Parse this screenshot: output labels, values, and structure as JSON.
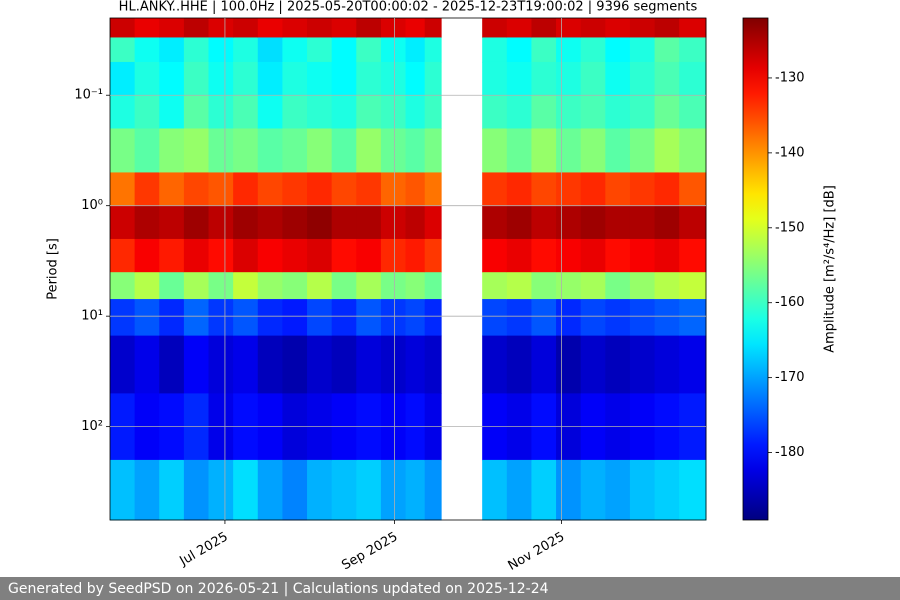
{
  "chart_data": {
    "type": "heatmap",
    "title": "HL.ANKY..HHE | 100.0Hz | 2025-05-20T00:00:02 - 2025-12-23T19:00:02 | 9396 segments",
    "ylabel": "Period [s]",
    "colorbar_label": "Amplitude [m²/s⁴/Hz] [dB]",
    "xlim": [
      "2025-05-20T00:00:02",
      "2025-12-23T19:00:02"
    ],
    "xticks": [
      {
        "value": "2025-07-01",
        "label": "Jul 2025"
      },
      {
        "value": "2025-09-01",
        "label": "Sep 2025"
      },
      {
        "value": "2025-11-01",
        "label": "Nov 2025"
      }
    ],
    "ylim": [
      0.02,
      700
    ],
    "yscale": "log",
    "y_reversed": true,
    "yticks": [
      {
        "value": 0.1,
        "label": "10⁻¹"
      },
      {
        "value": 1,
        "label": "10⁰"
      },
      {
        "value": 10,
        "label": "10¹"
      },
      {
        "value": 100,
        "label": "10²"
      }
    ],
    "grid": true,
    "colormap": "jet",
    "zlim": [
      -189,
      -122
    ],
    "zticks": [
      -130,
      -140,
      -150,
      -160,
      -170,
      -180
    ],
    "x": [
      "2025-05-20",
      "2025-05-29",
      "2025-06-07",
      "2025-06-16",
      "2025-06-25",
      "2025-07-04",
      "2025-07-13",
      "2025-07-22",
      "2025-07-31",
      "2025-08-09",
      "2025-08-18",
      "2025-08-27",
      "2025-09-05",
      "2025-09-12",
      "2025-09-18",
      "2025-10-03",
      "2025-10-12",
      "2025-10-21",
      "2025-10-30",
      "2025-11-08",
      "2025-11-17",
      "2025-11-26",
      "2025-12-05",
      "2025-12-14"
    ],
    "y_bins": [
      0.02,
      0.03,
      0.05,
      0.1,
      0.2,
      0.5,
      1,
      2,
      4,
      7,
      15,
      50,
      200,
      700
    ],
    "values": [
      [
        -127,
        -160,
        -165,
        -162,
        -156,
        -138,
        -127,
        -133,
        -155,
        -177,
        -184,
        -179,
        -168
      ],
      [
        -129,
        -163,
        -162,
        -160,
        -158,
        -134,
        -125,
        -130,
        -152,
        -175,
        -182,
        -181,
        -170
      ],
      [
        -128,
        -165,
        -164,
        -163,
        -155,
        -137,
        -126,
        -132,
        -157,
        -178,
        -185,
        -180,
        -167
      ],
      [
        -126,
        -161,
        -160,
        -158,
        -154,
        -135,
        -124,
        -129,
        -153,
        -174,
        -181,
        -178,
        -171
      ],
      [
        -128,
        -164,
        -163,
        -161,
        -157,
        -136,
        -126,
        -131,
        -156,
        -177,
        -183,
        -182,
        -169
      ],
      [
        -127,
        -162,
        -161,
        -159,
        -156,
        -133,
        -124,
        -128,
        -151,
        -175,
        -182,
        -180,
        -166
      ],
      [
        -129,
        -166,
        -165,
        -163,
        -158,
        -135,
        -125,
        -130,
        -154,
        -178,
        -185,
        -181,
        -170
      ],
      [
        -128,
        -163,
        -162,
        -160,
        -157,
        -134,
        -124,
        -129,
        -155,
        -179,
        -186,
        -183,
        -172
      ],
      [
        -127,
        -161,
        -163,
        -161,
        -155,
        -133,
        -123,
        -128,
        -152,
        -176,
        -184,
        -182,
        -169
      ],
      [
        -128,
        -164,
        -164,
        -162,
        -158,
        -135,
        -125,
        -131,
        -156,
        -178,
        -185,
        -181,
        -168
      ],
      [
        -126,
        -160,
        -161,
        -159,
        -154,
        -134,
        -125,
        -130,
        -153,
        -175,
        -183,
        -180,
        -167
      ],
      [
        -128,
        -163,
        -162,
        -160,
        -157,
        -137,
        -127,
        -133,
        -156,
        -177,
        -184,
        -181,
        -170
      ],
      [
        -129,
        -165,
        -164,
        -162,
        -158,
        -136,
        -126,
        -132,
        -155,
        -176,
        -183,
        -180,
        -169
      ],
      [
        -127,
        -162,
        -161,
        -160,
        -156,
        -138,
        -128,
        -134,
        -157,
        -178,
        -184,
        -182,
        -171
      ],
      [
        null,
        null,
        null,
        null,
        null,
        null,
        null,
        null,
        null,
        null,
        null,
        null,
        null
      ],
      [
        -127,
        -162,
        -162,
        -160,
        -155,
        -134,
        -125,
        -130,
        -153,
        -176,
        -184,
        -181,
        -168
      ],
      [
        -128,
        -164,
        -163,
        -161,
        -157,
        -133,
        -124,
        -129,
        -152,
        -177,
        -185,
        -182,
        -170
      ],
      [
        -126,
        -160,
        -161,
        -158,
        -154,
        -135,
        -126,
        -131,
        -155,
        -175,
        -183,
        -180,
        -167
      ],
      [
        -128,
        -163,
        -162,
        -160,
        -157,
        -134,
        -125,
        -130,
        -154,
        -178,
        -186,
        -183,
        -171
      ],
      [
        -127,
        -161,
        -160,
        -159,
        -155,
        -133,
        -124,
        -129,
        -153,
        -176,
        -184,
        -181,
        -169
      ],
      [
        -128,
        -164,
        -163,
        -161,
        -158,
        -135,
        -125,
        -131,
        -156,
        -177,
        -185,
        -182,
        -170
      ],
      [
        -127,
        -162,
        -161,
        -160,
        -156,
        -134,
        -125,
        -130,
        -154,
        -176,
        -184,
        -181,
        -168
      ],
      [
        -126,
        -158,
        -159,
        -157,
        -153,
        -133,
        -124,
        -129,
        -152,
        -175,
        -183,
        -180,
        -167
      ],
      [
        -128,
        -160,
        -161,
        -159,
        -155,
        -136,
        -126,
        -131,
        -151,
        -174,
        -182,
        -179,
        -166
      ]
    ]
  },
  "footer": "Generated by SeedPSD on 2026-05-21 | Calculations updated on 2025-12-24"
}
